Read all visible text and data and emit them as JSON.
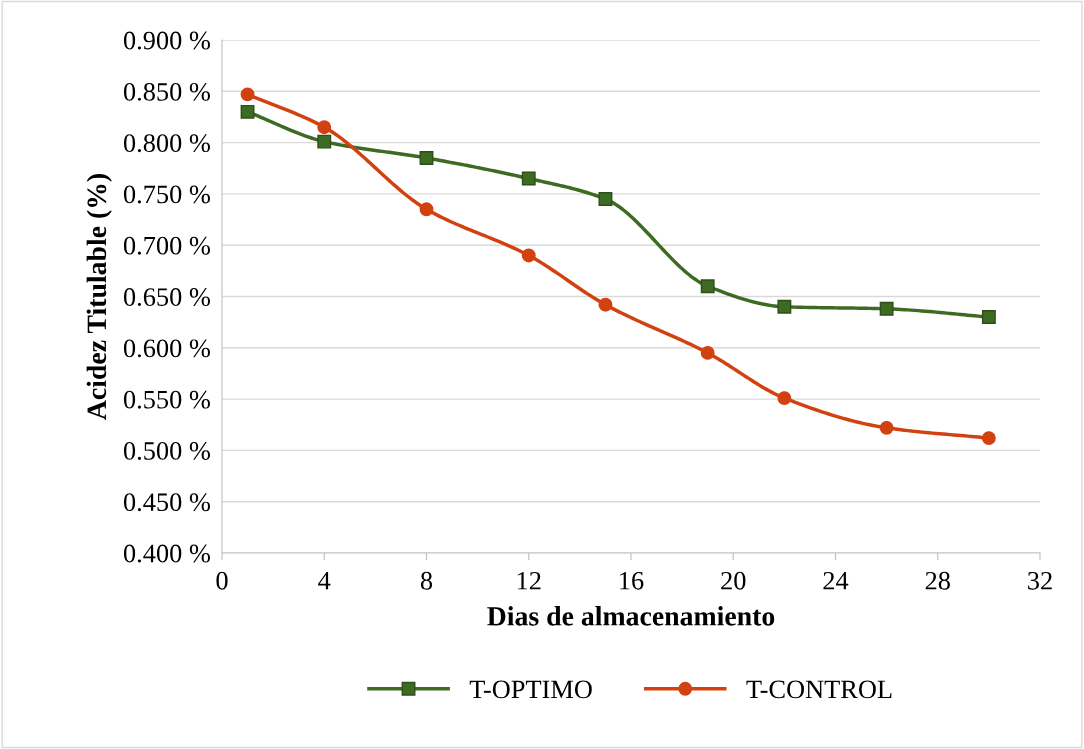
{
  "chart_data": {
    "type": "line",
    "xlabel": "Dias de almacenamiento",
    "ylabel": "Acidez Titulable (%)",
    "x": [
      1,
      4,
      8,
      12,
      15,
      19,
      22,
      26,
      30
    ],
    "series": [
      {
        "name": "T-OPTIMO",
        "color": "#3d6b22",
        "marker": "square",
        "values": [
          0.83,
          0.801,
          0.785,
          0.765,
          0.745,
          0.66,
          0.64,
          0.638,
          0.63
        ]
      },
      {
        "name": "T-CONTROL",
        "color": "#d24210",
        "marker": "circle",
        "values": [
          0.847,
          0.815,
          0.735,
          0.69,
          0.642,
          0.595,
          0.551,
          0.522,
          0.512
        ]
      }
    ],
    "xlim": [
      0,
      32
    ],
    "xticks": [
      0,
      4,
      8,
      12,
      16,
      20,
      24,
      28,
      32
    ],
    "ylim": [
      0.4,
      0.9
    ],
    "yticks": [
      {
        "value": 0.4,
        "label": "0.400 %"
      },
      {
        "value": 0.45,
        "label": "0.450 %"
      },
      {
        "value": 0.5,
        "label": "0.500 %"
      },
      {
        "value": 0.55,
        "label": "0.550 %"
      },
      {
        "value": 0.6,
        "label": "0.600 %"
      },
      {
        "value": 0.65,
        "label": "0.650 %"
      },
      {
        "value": 0.7,
        "label": "0.700 %"
      },
      {
        "value": 0.75,
        "label": "0.750 %"
      },
      {
        "value": 0.8,
        "label": "0.800 %"
      },
      {
        "value": 0.85,
        "label": "0.850 %"
      },
      {
        "value": 0.9,
        "label": "0.900 %"
      }
    ],
    "grid": "y",
    "legend": "bottom",
    "line_style": "solid"
  }
}
